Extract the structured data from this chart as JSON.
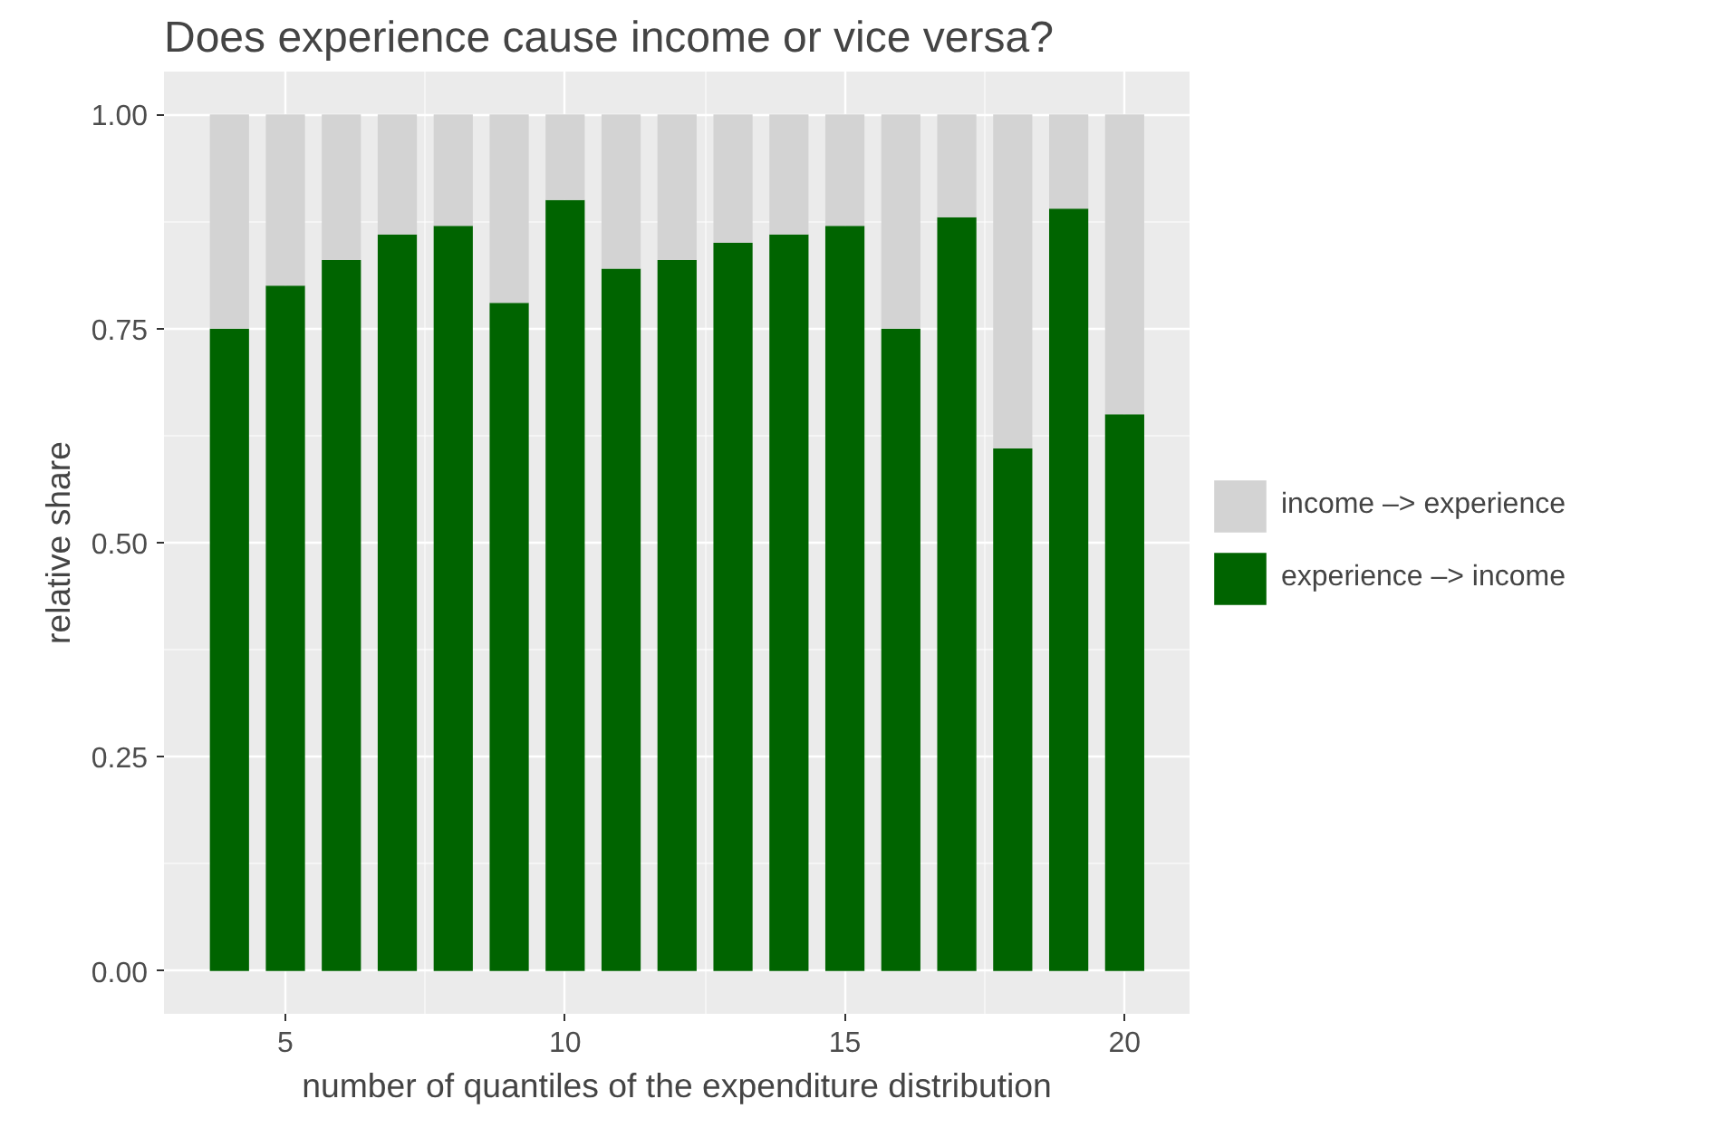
{
  "chart_data": {
    "type": "bar",
    "title": "Does experience cause income or vice versa?",
    "xlabel": "number of quantiles of the expenditure distribution",
    "ylabel": "relative share",
    "x": [
      4,
      5,
      6,
      7,
      8,
      9,
      10,
      11,
      12,
      13,
      14,
      15,
      16,
      17,
      18,
      19,
      20
    ],
    "stacked": true,
    "series": [
      {
        "name": "experience –> income",
        "color": "#006400",
        "values": [
          0.75,
          0.8,
          0.83,
          0.86,
          0.87,
          0.78,
          0.9,
          0.82,
          0.83,
          0.85,
          0.86,
          0.87,
          0.75,
          0.88,
          0.61,
          0.89,
          0.65
        ]
      },
      {
        "name": "income –> experience",
        "color": "#d3d3d3",
        "values": [
          0.25,
          0.2,
          0.17,
          0.14,
          0.13,
          0.22,
          0.1,
          0.18,
          0.17,
          0.15,
          0.14,
          0.13,
          0.25,
          0.12,
          0.39,
          0.11,
          0.35
        ]
      }
    ],
    "xlim": [
      2.83,
      21.16
    ],
    "xticks": [
      5,
      10,
      15,
      20
    ],
    "ylim": [
      -0.05,
      1.05
    ],
    "yticks": [
      {
        "value": 0,
        "label": "0.00"
      },
      {
        "value": 0.25,
        "label": "0.25"
      },
      {
        "value": 0.5,
        "label": "0.50"
      },
      {
        "value": 0.75,
        "label": "0.75"
      },
      {
        "value": 1,
        "label": "1.00"
      }
    ],
    "grid": true,
    "legend": "right"
  }
}
